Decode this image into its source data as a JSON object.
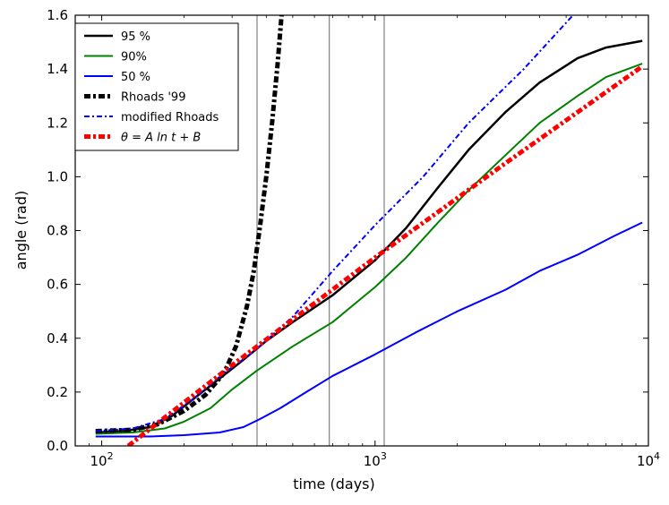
{
  "chart_data": {
    "type": "line",
    "xscale": "log",
    "xlabel": "time (days)",
    "ylabel": "angle (rad)",
    "xlim": [
      80,
      10000
    ],
    "ylim": [
      0,
      1.6
    ],
    "x_ticks": [
      {
        "value": 100,
        "base": "10",
        "exp": "2"
      },
      {
        "value": 1000,
        "base": "10",
        "exp": "3"
      },
      {
        "value": 10000,
        "base": "10",
        "exp": "4"
      }
    ],
    "y_ticks": [
      "0.0",
      "0.2",
      "0.4",
      "0.6",
      "0.8",
      "1.0",
      "1.2",
      "1.4",
      "1.6"
    ],
    "vlines": [
      370,
      680,
      1080
    ],
    "vline_color": "#808080",
    "legend_position": "upper-left",
    "series": [
      {
        "name": "95 %",
        "color": "#000000",
        "style": "solid",
        "width": 2.5,
        "points": [
          [
            95,
            0.05
          ],
          [
            120,
            0.055
          ],
          [
            150,
            0.07
          ],
          [
            180,
            0.11
          ],
          [
            220,
            0.18
          ],
          [
            270,
            0.25
          ],
          [
            330,
            0.32
          ],
          [
            400,
            0.39
          ],
          [
            500,
            0.46
          ],
          [
            700,
            0.56
          ],
          [
            1000,
            0.69
          ],
          [
            1300,
            0.81
          ],
          [
            1700,
            0.96
          ],
          [
            2200,
            1.1
          ],
          [
            3000,
            1.24
          ],
          [
            4000,
            1.35
          ],
          [
            5500,
            1.44
          ],
          [
            7000,
            1.48
          ],
          [
            9500,
            1.505
          ]
        ]
      },
      {
        "name": "90%",
        "color": "#008000",
        "style": "solid",
        "width": 2,
        "points": [
          [
            95,
            0.045
          ],
          [
            130,
            0.05
          ],
          [
            170,
            0.065
          ],
          [
            200,
            0.09
          ],
          [
            250,
            0.14
          ],
          [
            300,
            0.21
          ],
          [
            370,
            0.28
          ],
          [
            500,
            0.37
          ],
          [
            700,
            0.46
          ],
          [
            1000,
            0.59
          ],
          [
            1300,
            0.7
          ],
          [
            1700,
            0.83
          ],
          [
            2200,
            0.95
          ],
          [
            3000,
            1.08
          ],
          [
            4000,
            1.2
          ],
          [
            5500,
            1.3
          ],
          [
            7000,
            1.37
          ],
          [
            9500,
            1.42
          ]
        ]
      },
      {
        "name": "50 %",
        "color": "#0000ff",
        "style": "solid",
        "width": 2,
        "points": [
          [
            95,
            0.035
          ],
          [
            150,
            0.035
          ],
          [
            200,
            0.04
          ],
          [
            270,
            0.05
          ],
          [
            330,
            0.07
          ],
          [
            380,
            0.1
          ],
          [
            450,
            0.14
          ],
          [
            560,
            0.2
          ],
          [
            700,
            0.26
          ],
          [
            1000,
            0.34
          ],
          [
            1400,
            0.42
          ],
          [
            2000,
            0.5
          ],
          [
            3000,
            0.58
          ],
          [
            4000,
            0.65
          ],
          [
            5500,
            0.71
          ],
          [
            7500,
            0.78
          ],
          [
            9500,
            0.83
          ]
        ]
      },
      {
        "name": "Rhoads '99",
        "color": "#000000",
        "style": "dashdot",
        "width": 5,
        "points": [
          [
            95,
            0.055
          ],
          [
            130,
            0.06
          ],
          [
            160,
            0.08
          ],
          [
            200,
            0.13
          ],
          [
            240,
            0.19
          ],
          [
            280,
            0.27
          ],
          [
            310,
            0.37
          ],
          [
            340,
            0.52
          ],
          [
            360,
            0.65
          ],
          [
            380,
            0.82
          ],
          [
            400,
            1.0
          ],
          [
            420,
            1.2
          ],
          [
            440,
            1.42
          ],
          [
            455,
            1.6
          ]
        ]
      },
      {
        "name": "modified Rhoads",
        "color": "#0000ff",
        "style": "dashdot",
        "width": 2,
        "points": [
          [
            95,
            0.055
          ],
          [
            130,
            0.065
          ],
          [
            170,
            0.1
          ],
          [
            220,
            0.18
          ],
          [
            280,
            0.27
          ],
          [
            360,
            0.35
          ],
          [
            500,
            0.48
          ],
          [
            700,
            0.65
          ],
          [
            1000,
            0.82
          ],
          [
            1500,
            1.0
          ],
          [
            2200,
            1.2
          ],
          [
            3500,
            1.4
          ],
          [
            5300,
            1.6
          ]
        ]
      },
      {
        "name": "θ = A ln t + B",
        "color": "#ff0000",
        "style": "dashdot",
        "width": 5,
        "points": [
          [
            125,
            0.0
          ],
          [
            300,
            0.3
          ],
          [
            1000,
            0.7
          ],
          [
            3000,
            1.05
          ],
          [
            9500,
            1.41
          ]
        ]
      }
    ]
  }
}
